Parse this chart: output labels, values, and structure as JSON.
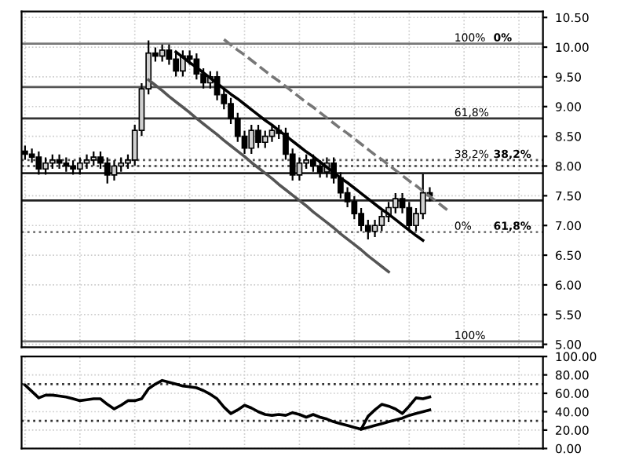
{
  "chart_data": [
    {
      "type": "candlestick",
      "categories": [
        null,
        null,
        null,
        null,
        null,
        null,
        null,
        null,
        null,
        null,
        null,
        null,
        null,
        null,
        null,
        null,
        null,
        null,
        null,
        null,
        null,
        null,
        null,
        null,
        null,
        null,
        null,
        null,
        null,
        null,
        null,
        null,
        null,
        null,
        null,
        null,
        null,
        null,
        null,
        null,
        null,
        null,
        null,
        null,
        null,
        null,
        null,
        null,
        null,
        null,
        null,
        null,
        null,
        null,
        null,
        null,
        null,
        null,
        null,
        null,
        null,
        null,
        null,
        null,
        null,
        null,
        null,
        null,
        null,
        null,
        null,
        null,
        null,
        null,
        null,
        null
      ],
      "ohlc": [
        [
          8.25,
          8.33,
          8.12,
          8.2
        ],
        [
          8.2,
          8.28,
          8.07,
          8.15
        ],
        [
          8.15,
          8.23,
          7.87,
          7.95
        ],
        [
          7.95,
          8.13,
          7.87,
          8.05
        ],
        [
          8.05,
          8.18,
          7.97,
          8.1
        ],
        [
          8.1,
          8.18,
          7.97,
          8.05
        ],
        [
          8.05,
          8.13,
          7.92,
          8.0
        ],
        [
          8.0,
          8.08,
          7.87,
          7.95
        ],
        [
          7.95,
          8.13,
          7.87,
          8.05
        ],
        [
          8.05,
          8.18,
          7.97,
          8.1
        ],
        [
          8.1,
          8.23,
          8.02,
          8.15
        ],
        [
          8.15,
          8.23,
          7.97,
          8.05
        ],
        [
          8.05,
          8.13,
          7.72,
          7.85
        ],
        [
          7.85,
          8.08,
          7.77,
          8.0
        ],
        [
          8.0,
          8.13,
          7.92,
          8.05
        ],
        [
          8.05,
          8.18,
          7.97,
          8.1
        ],
        [
          8.1,
          8.68,
          8.02,
          8.6
        ],
        [
          8.6,
          9.38,
          8.52,
          9.3
        ],
        [
          9.3,
          10.1,
          9.22,
          9.9
        ],
        [
          9.9,
          9.98,
          9.77,
          9.85
        ],
        [
          9.85,
          10.03,
          9.77,
          9.95
        ],
        [
          9.95,
          10.03,
          9.72,
          9.8
        ],
        [
          9.8,
          9.88,
          9.52,
          9.6
        ],
        [
          9.6,
          9.93,
          9.52,
          9.85
        ],
        [
          9.85,
          9.93,
          9.72,
          9.8
        ],
        [
          9.8,
          9.88,
          9.47,
          9.55
        ],
        [
          9.55,
          9.63,
          9.32,
          9.4
        ],
        [
          9.4,
          9.58,
          9.32,
          9.5
        ],
        [
          9.5,
          9.58,
          9.12,
          9.2
        ],
        [
          9.2,
          9.28,
          8.97,
          9.05
        ],
        [
          9.05,
          9.13,
          8.72,
          8.8
        ],
        [
          8.8,
          8.88,
          8.42,
          8.5
        ],
        [
          8.5,
          8.58,
          8.22,
          8.3
        ],
        [
          8.3,
          8.68,
          8.22,
          8.6
        ],
        [
          8.6,
          8.68,
          8.32,
          8.4
        ],
        [
          8.4,
          8.58,
          8.32,
          8.5
        ],
        [
          8.5,
          8.68,
          8.42,
          8.6
        ],
        [
          8.6,
          8.68,
          8.47,
          8.55
        ],
        [
          8.55,
          8.63,
          8.12,
          8.2
        ],
        [
          8.2,
          8.28,
          7.77,
          7.85
        ],
        [
          7.85,
          8.13,
          7.77,
          8.05
        ],
        [
          8.05,
          8.18,
          7.97,
          8.1
        ],
        [
          8.1,
          8.18,
          7.92,
          8.0
        ],
        [
          8.0,
          8.08,
          7.82,
          7.9
        ],
        [
          7.9,
          8.13,
          7.82,
          8.05
        ],
        [
          8.05,
          8.13,
          7.72,
          7.8
        ],
        [
          7.8,
          7.88,
          7.47,
          7.55
        ],
        [
          7.55,
          7.63,
          7.32,
          7.4
        ],
        [
          7.4,
          7.48,
          7.12,
          7.2
        ],
        [
          7.2,
          7.28,
          6.92,
          7.0
        ],
        [
          7.0,
          7.08,
          6.78,
          6.9
        ],
        [
          6.9,
          7.08,
          6.82,
          7.0
        ],
        [
          7.0,
          7.23,
          6.92,
          7.15
        ],
        [
          7.15,
          7.38,
          7.07,
          7.3
        ],
        [
          7.3,
          7.53,
          7.22,
          7.45
        ],
        [
          7.45,
          7.53,
          7.22,
          7.3
        ],
        [
          7.3,
          7.38,
          6.92,
          7.0
        ],
        [
          7.0,
          7.28,
          6.92,
          7.2
        ],
        [
          7.2,
          7.85,
          7.12,
          7.55
        ],
        [
          7.55,
          7.63,
          7.42,
          7.5
        ],
        null,
        null,
        null,
        null,
        null,
        null,
        null,
        null,
        null,
        null,
        null,
        null,
        null,
        null,
        null,
        null
      ],
      "series": [
        {
          "type": "line",
          "color": "#000000",
          "values": [
            null,
            null,
            null,
            null,
            null,
            null,
            null,
            null,
            null,
            null,
            null,
            null,
            null,
            null,
            null,
            null,
            null,
            null,
            null,
            null,
            null,
            null,
            9.92,
            9.83,
            9.74,
            9.66,
            9.57,
            9.48,
            9.39,
            9.3,
            9.21,
            9.13,
            9.04,
            8.95,
            8.86,
            8.77,
            8.69,
            8.6,
            8.51,
            8.42,
            8.33,
            8.24,
            8.16,
            8.07,
            7.98,
            7.89,
            7.8,
            7.72,
            7.63,
            7.54,
            7.45,
            7.36,
            7.27,
            7.19,
            7.1,
            7.01,
            6.92,
            6.83,
            6.75,
            null,
            null,
            null,
            null,
            null,
            null,
            null,
            null,
            null,
            null,
            null,
            null,
            null,
            null,
            null,
            null,
            null
          ]
        },
        {
          "type": "line",
          "color": "#555555",
          "values": [
            null,
            null,
            null,
            null,
            null,
            null,
            null,
            null,
            null,
            null,
            null,
            null,
            null,
            null,
            null,
            null,
            null,
            null,
            9.45,
            9.36,
            9.27,
            9.17,
            9.08,
            8.99,
            8.9,
            8.8,
            8.71,
            8.62,
            8.53,
            8.43,
            8.34,
            8.25,
            8.16,
            8.06,
            7.97,
            7.88,
            7.79,
            7.69,
            7.6,
            7.51,
            7.42,
            7.33,
            7.23,
            7.14,
            7.05,
            6.96,
            6.86,
            6.77,
            6.68,
            6.59,
            6.49,
            6.4,
            6.31,
            6.22,
            null,
            null,
            null,
            null,
            null,
            null,
            null,
            null,
            null,
            null,
            null,
            null,
            null,
            null,
            null,
            null,
            null,
            null,
            null,
            null,
            null,
            null
          ]
        },
        {
          "type": "line",
          "color": "#777777",
          "line_style": "dashed",
          "values": [
            null,
            null,
            null,
            null,
            null,
            null,
            null,
            null,
            null,
            null,
            null,
            null,
            null,
            null,
            null,
            null,
            null,
            null,
            null,
            null,
            null,
            null,
            null,
            null,
            null,
            null,
            null,
            null,
            null,
            10.13,
            10.04,
            9.95,
            9.87,
            9.78,
            9.69,
            9.6,
            9.51,
            9.43,
            9.34,
            9.25,
            9.16,
            9.07,
            8.99,
            8.9,
            8.81,
            8.72,
            8.63,
            8.55,
            8.46,
            8.37,
            8.28,
            8.19,
            8.11,
            8.02,
            7.93,
            7.84,
            7.75,
            7.67,
            7.58,
            7.49,
            7.4,
            7.31,
            7.22,
            null,
            null,
            null,
            null,
            null,
            null,
            null,
            null,
            null,
            null,
            null,
            null,
            null
          ]
        }
      ],
      "ref_lines": [
        {
          "axis": "y",
          "value": 10.06,
          "color": "#777777"
        },
        {
          "axis": "y",
          "value": 9.33,
          "color": "#555555"
        },
        {
          "axis": "y",
          "value": 8.8,
          "color": "#333333"
        },
        {
          "axis": "y",
          "value": 8.1,
          "color": "#555555",
          "line_style": "dotted"
        },
        {
          "axis": "y",
          "value": 8.0,
          "color": "#555555",
          "line_style": "dotted"
        },
        {
          "axis": "y",
          "value": 7.88,
          "color": "#222222"
        },
        {
          "axis": "y",
          "value": 7.42,
          "color": "#222222"
        },
        {
          "axis": "y",
          "value": 6.89,
          "color": "#777777",
          "line_style": "dotted"
        },
        {
          "axis": "y",
          "value": 5.05,
          "color": "#777777"
        }
      ],
      "annotations": [
        {
          "text": "100%",
          "y": 10.06
        },
        {
          "text": "0%",
          "y": 10.06
        },
        {
          "text": "61,8%",
          "y": 8.8
        },
        {
          "text": "38,2%",
          "y": 8.1
        },
        {
          "text": "38,2%",
          "y": 8.1
        },
        {
          "text": "0%",
          "y": 6.89
        },
        {
          "text": "61,8%",
          "y": 6.89
        },
        {
          "text": "100%",
          "y": 5.05
        }
      ],
      "ylim": [
        4.95,
        10.6
      ],
      "yticks": [
        {
          "value": 5.0,
          "label": "5.00"
        },
        {
          "value": 5.5,
          "label": "5.50"
        },
        {
          "value": 6.0,
          "label": "6.00"
        },
        {
          "value": 6.5,
          "label": "6.50"
        },
        {
          "value": 7.0,
          "label": "7.00"
        },
        {
          "value": 7.5,
          "label": "7.50"
        },
        {
          "value": 8.0,
          "label": "8.00"
        },
        {
          "value": 8.5,
          "label": "8.50"
        },
        {
          "value": 9.0,
          "label": "9.00"
        },
        {
          "value": 9.5,
          "label": "9.50"
        },
        {
          "value": 10.0,
          "label": "10.00"
        },
        {
          "value": 10.5,
          "label": "10.50"
        }
      ],
      "grid": true
    },
    {
      "type": "line",
      "categories": [
        null,
        null,
        null,
        null,
        null,
        null,
        null,
        null,
        null,
        null,
        null,
        null,
        null,
        null,
        null,
        null,
        null,
        null,
        null,
        null,
        null,
        null,
        null,
        null,
        null,
        null,
        null,
        null,
        null,
        null,
        null,
        null,
        null,
        null,
        null,
        null,
        null,
        null,
        null,
        null,
        null,
        null,
        null,
        null,
        null,
        null,
        null,
        null,
        null,
        null,
        null,
        null,
        null,
        null,
        null,
        null,
        null,
        null,
        null,
        null,
        null,
        null,
        null,
        null,
        null,
        null,
        null,
        null,
        null,
        null,
        null,
        null,
        null,
        null,
        null,
        null
      ],
      "series": [
        {
          "color": "#000000",
          "values": [
            69,
            62,
            55,
            58,
            58,
            57,
            56,
            54,
            52,
            53,
            54,
            54,
            48,
            43,
            47,
            52,
            52,
            54,
            65,
            70,
            74,
            72,
            70,
            68,
            67,
            66,
            63,
            59,
            54,
            45,
            38,
            42,
            47,
            44,
            40,
            37,
            36,
            37,
            36,
            39,
            37,
            34,
            37,
            34,
            32,
            29,
            27,
            25,
            23,
            21,
            35,
            42,
            48,
            46,
            43,
            38,
            46,
            55,
            54,
            56,
            null,
            null,
            null,
            null,
            null,
            null,
            null,
            null,
            null,
            null,
            null,
            null,
            null,
            null,
            null,
            null
          ]
        },
        {
          "color": "#000000",
          "values": [
            null,
            null,
            null,
            null,
            null,
            null,
            null,
            null,
            null,
            null,
            null,
            null,
            null,
            null,
            null,
            null,
            null,
            null,
            null,
            null,
            null,
            null,
            null,
            null,
            null,
            null,
            null,
            null,
            null,
            null,
            null,
            null,
            null,
            null,
            null,
            null,
            null,
            null,
            null,
            null,
            null,
            null,
            null,
            null,
            null,
            null,
            null,
            null,
            null,
            21,
            23,
            25,
            27,
            29,
            31,
            33,
            36,
            38,
            40,
            42,
            null,
            null,
            null,
            null,
            null,
            null,
            null,
            null,
            null,
            null,
            null,
            null,
            null,
            null,
            null,
            null
          ]
        }
      ],
      "ref_lines": [
        {
          "axis": "y",
          "value": 70,
          "color": "#333333",
          "line_style": "dotted"
        },
        {
          "axis": "y",
          "value": 30,
          "color": "#333333",
          "line_style": "dotted"
        }
      ],
      "ylim": [
        0,
        100
      ],
      "yticks": [
        {
          "value": 0,
          "label": "0.00"
        },
        {
          "value": 20,
          "label": "20.00"
        },
        {
          "value": 40,
          "label": "40.00"
        },
        {
          "value": 60,
          "label": "60.00"
        },
        {
          "value": 80,
          "label": "80.00"
        },
        {
          "value": 100,
          "label": "100.00"
        }
      ],
      "grid": true
    }
  ]
}
